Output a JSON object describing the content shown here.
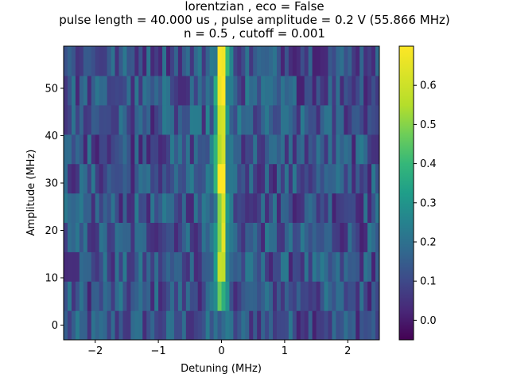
{
  "chart_data": {
    "type": "heatmap",
    "title": [
      "lorentzian , eco = False",
      "pulse length = 40.000 us , pulse amplitude = 0.2 V (55.866 MHz)",
      "n = 0.5 , cutoff = 0.001"
    ],
    "xlabel": "Detuning (MHz)",
    "ylabel": "Amplitude (MHz)",
    "xlim": [
      -2.5,
      2.5
    ],
    "ylim": [
      -3.1,
      58.9
    ],
    "x_ticks": [
      -2,
      -1,
      0,
      1,
      2
    ],
    "x_tick_labels": [
      "−2",
      "−1",
      "0",
      "1",
      "2"
    ],
    "y_ticks": [
      0,
      10,
      20,
      30,
      40,
      50
    ],
    "y_tick_labels": [
      "0",
      "10",
      "20",
      "30",
      "40",
      "50"
    ],
    "colormap": "viridis",
    "colorbar": {
      "range": [
        -0.05,
        0.7
      ],
      "ticks": [
        0.0,
        0.1,
        0.2,
        0.3,
        0.4,
        0.5,
        0.6
      ],
      "tick_labels": [
        "0.0",
        "0.1",
        "0.2",
        "0.3",
        "0.4",
        "0.5",
        "0.6"
      ]
    },
    "rows": [
      {
        "y": 0.0,
        "peak": 0.1
      },
      {
        "y": 6.2,
        "peak": 0.3
      },
      {
        "y": 12.4,
        "peak": 0.55
      },
      {
        "y": 18.6,
        "peak": 0.58
      },
      {
        "y": 24.8,
        "peak": 0.6
      },
      {
        "y": 31.0,
        "peak": 0.62
      },
      {
        "y": 37.2,
        "peak": 0.6
      },
      {
        "y": 43.4,
        "peak": 0.52
      },
      {
        "y": 49.6,
        "peak": 0.66
      },
      {
        "y": 55.8,
        "peak": 0.7
      }
    ],
    "peak_center_x": 0.0,
    "background_level": 0.12,
    "columns": 80
  }
}
